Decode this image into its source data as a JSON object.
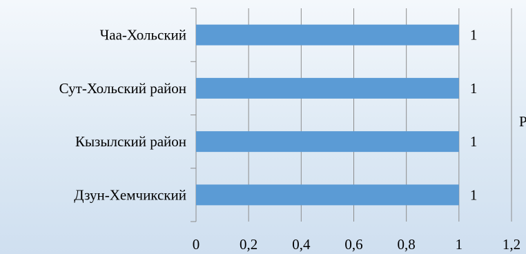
{
  "chart_data": {
    "type": "bar",
    "orientation": "horizontal",
    "categories": [
      "Дзун-Хемчикский",
      "Кызылский район",
      "Сут-Хольский район",
      "Чаа-Хольский"
    ],
    "series": [
      {
        "values": [
          1,
          1,
          1,
          1
        ]
      }
    ],
    "data_labels": [
      "1",
      "1",
      "1",
      "1"
    ],
    "xlim": [
      0,
      1.2
    ],
    "x_ticks": [
      0,
      0.2,
      0.4,
      0.6,
      0.8,
      1,
      1.2
    ],
    "x_tick_labels": [
      "0",
      "0,2",
      "0,4",
      "0,6",
      "0,8",
      "1",
      "1,2"
    ],
    "grid": "vertical",
    "legend_position": "right",
    "legend_fragment": "Р",
    "colors": {
      "bar": "#5b9bd5",
      "grid": "#8c8c8c",
      "text": "#000000"
    }
  }
}
